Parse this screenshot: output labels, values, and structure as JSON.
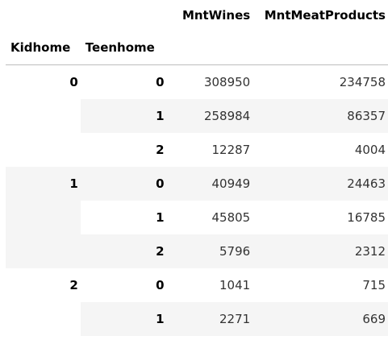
{
  "table": {
    "columns": [
      "MntWines",
      "MntMeatProducts"
    ],
    "index_names": [
      "Kidhome",
      "Teenhome"
    ],
    "groups": [
      {
        "kidhome": "0",
        "rows": [
          {
            "teenhome": "0",
            "MntWines": "308950",
            "MntMeatProducts": "234758"
          },
          {
            "teenhome": "1",
            "MntWines": "258984",
            "MntMeatProducts": "86357"
          },
          {
            "teenhome": "2",
            "MntWines": "12287",
            "MntMeatProducts": "4004"
          }
        ]
      },
      {
        "kidhome": "1",
        "rows": [
          {
            "teenhome": "0",
            "MntWines": "40949",
            "MntMeatProducts": "24463"
          },
          {
            "teenhome": "1",
            "MntWines": "45805",
            "MntMeatProducts": "16785"
          },
          {
            "teenhome": "2",
            "MntWines": "5796",
            "MntMeatProducts": "2312"
          }
        ]
      },
      {
        "kidhome": "2",
        "rows": [
          {
            "teenhome": "0",
            "MntWines": "1041",
            "MntMeatProducts": "715"
          },
          {
            "teenhome": "1",
            "MntWines": "2271",
            "MntMeatProducts": "669"
          }
        ]
      }
    ]
  }
}
